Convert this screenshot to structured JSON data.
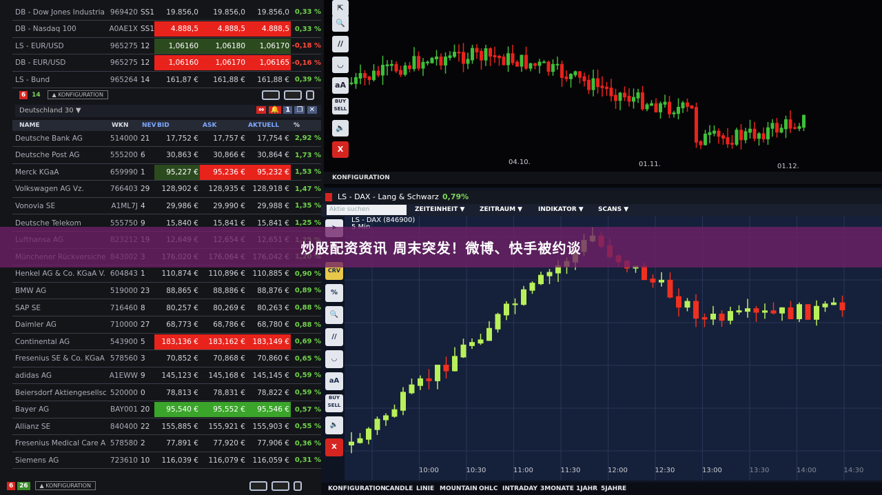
{
  "index_table": [
    {
      "name": "DB - Dow Jones Industria",
      "wkn": "969420",
      "nev": "SS1",
      "bid": "19.856,0",
      "ask": "19.856,0",
      "akt": "19.856,0",
      "pct": "0,33 %",
      "hl": ""
    },
    {
      "name": "DB - Nasdaq 100",
      "wkn": "A0AE1X",
      "nev": "SS1",
      "bid": "4.888,5",
      "ask": "4.888,5",
      "akt": "4.888,5",
      "pct": "0,33 %",
      "hl": "red"
    },
    {
      "name": "LS - EUR/USD",
      "wkn": "965275",
      "nev": "12",
      "bid": "1,06160",
      "ask": "1,06180",
      "akt": "1,06170",
      "pct": "-0,18 %",
      "hl": "dgreen"
    },
    {
      "name": "DB - EUR/USD",
      "wkn": "965275",
      "nev": "12",
      "bid": "1,06160",
      "ask": "1,06170",
      "akt": "1,06165",
      "pct": "-0,16 %",
      "hl": "red"
    },
    {
      "name": "LS - Bund",
      "wkn": "965264",
      "nev": "14",
      "bid": "161,87 €",
      "ask": "161,88 €",
      "akt": "161,88 €",
      "pct": "0,39 %",
      "hl": ""
    }
  ],
  "top_toolbar": {
    "count_red": "6",
    "count_green": "14",
    "config": "▲ KONFIGURATION"
  },
  "watchlist": {
    "title": "Deutschland 30",
    "columns": [
      "NAME",
      "WKN",
      "NEV",
      "BID",
      "ASK",
      "AKTUELL",
      "%"
    ],
    "rows": [
      {
        "name": "Deutsche Bank AG",
        "wkn": "514000",
        "nev": "21",
        "bid": "17,752 €",
        "ask": "17,757 €",
        "akt": "17,754 €",
        "pct": "2,92 %",
        "hl": ""
      },
      {
        "name": "Deutsche Post AG",
        "wkn": "555200",
        "nev": "6",
        "bid": "30,863 €",
        "ask": "30,866 €",
        "akt": "30,864 €",
        "pct": "1,73 %",
        "hl": ""
      },
      {
        "name": "Merck KGaA",
        "wkn": "659990",
        "nev": "1",
        "bid": "95,227 €",
        "ask": "95,236 €",
        "akt": "95,232 €",
        "pct": "1,53 %",
        "hl": "merck"
      },
      {
        "name": "Volkswagen AG Vz.",
        "wkn": "766403",
        "nev": "29",
        "bid": "128,902 €",
        "ask": "128,935 €",
        "akt": "128,918 €",
        "pct": "1,47 %",
        "hl": ""
      },
      {
        "name": "Vonovia SE",
        "wkn": "A1ML7J",
        "nev": "4",
        "bid": "29,986 €",
        "ask": "29,990 €",
        "akt": "29,988 €",
        "pct": "1,35 %",
        "hl": ""
      },
      {
        "name": "Deutsche Telekom",
        "wkn": "555750",
        "nev": "9",
        "bid": "15,840 €",
        "ask": "15,841 €",
        "akt": "15,841 €",
        "pct": "1,25 %",
        "hl": ""
      },
      {
        "name": "Lufthansa AG",
        "wkn": "823212",
        "nev": "19",
        "bid": "12,649 €",
        "ask": "12,654 €",
        "akt": "12,651 €",
        "pct": "1,25 %",
        "hl": ""
      },
      {
        "name": "Münchener Rückversiche",
        "wkn": "843002",
        "nev": "3",
        "bid": "176,020 €",
        "ask": "176,064 €",
        "akt": "176,042 €",
        "pct": "1,20 %",
        "hl": ""
      },
      {
        "name": "Henkel AG & Co. KGaA V.",
        "wkn": "604843",
        "nev": "1",
        "bid": "110,874 €",
        "ask": "110,896 €",
        "akt": "110,885 €",
        "pct": "0,90 %",
        "hl": ""
      },
      {
        "name": "BMW AG",
        "wkn": "519000",
        "nev": "23",
        "bid": "88,865 €",
        "ask": "88,886 €",
        "akt": "88,876 €",
        "pct": "0,89 %",
        "hl": ""
      },
      {
        "name": "SAP SE",
        "wkn": "716460",
        "nev": "8",
        "bid": "80,257 €",
        "ask": "80,269 €",
        "akt": "80,263 €",
        "pct": "0,88 %",
        "hl": ""
      },
      {
        "name": "Daimler AG",
        "wkn": "710000",
        "nev": "27",
        "bid": "68,773 €",
        "ask": "68,786 €",
        "akt": "68,780 €",
        "pct": "0,88 %",
        "hl": ""
      },
      {
        "name": "Continental AG",
        "wkn": "543900",
        "nev": "5",
        "bid": "183,136 €",
        "ask": "183,162 €",
        "akt": "183,149 €",
        "pct": "0,69 %",
        "hl": "red"
      },
      {
        "name": "Fresenius SE & Co. KGaA",
        "wkn": "578560",
        "nev": "3",
        "bid": "70,852 €",
        "ask": "70,868 €",
        "akt": "70,860 €",
        "pct": "0,65 %",
        "hl": ""
      },
      {
        "name": "adidas AG",
        "wkn": "A1EWW",
        "nev": "9",
        "bid": "145,123 €",
        "ask": "145,168 €",
        "akt": "145,145 €",
        "pct": "0,59 %",
        "hl": ""
      },
      {
        "name": "Beiersdorf Aktiengesellsc",
        "wkn": "520000",
        "nev": "0",
        "bid": "78,813 €",
        "ask": "78,831 €",
        "akt": "78,822 €",
        "pct": "0,59 %",
        "hl": ""
      },
      {
        "name": "Bayer AG",
        "wkn": "BAY001",
        "nev": "20",
        "bid": "95,540 €",
        "ask": "95,552 €",
        "akt": "95,546 €",
        "pct": "0,57 %",
        "hl": "green"
      },
      {
        "name": "Allianz SE",
        "wkn": "840400",
        "nev": "22",
        "bid": "155,885 €",
        "ask": "155,921 €",
        "akt": "155,903 €",
        "pct": "0,55 %",
        "hl": ""
      },
      {
        "name": "Fresenius Medical Care A",
        "wkn": "578580",
        "nev": "2",
        "bid": "77,891 €",
        "ask": "77,920 €",
        "akt": "77,906 €",
        "pct": "0,36 %",
        "hl": ""
      },
      {
        "name": "Siemens AG",
        "wkn": "723610",
        "nev": "10",
        "bid": "116,039 €",
        "ask": "116,079 €",
        "akt": "116,059 €",
        "pct": "0,31 %",
        "hl": ""
      }
    ]
  },
  "bottom_toolbar": {
    "count_red": "6",
    "count_green": "26",
    "config": "▲ KONFIGURATION"
  },
  "top_chart": {
    "x_labels": [
      "04.10.",
      "01.11.",
      "01.12."
    ],
    "config": "KONFIGURATION",
    "tools": [
      "aA",
      "BUY SELL",
      "X"
    ]
  },
  "dax_window": {
    "title": "LS - DAX - Lang & Schwarz",
    "change": "0,79%",
    "search_placeholder": "Aktie suchen",
    "menus": [
      "ZEITEINHEIT ▼",
      "ZEITRAUM ▼",
      "INDIKATOR ▼",
      "SCANS ▼"
    ],
    "instrument": "LS - DAX (846900)",
    "interval": "5 Min",
    "time_labels": [
      "10:00",
      "10:30",
      "11:00",
      "11:30",
      "12:00",
      "12:30",
      "13:00",
      "13:30",
      "14:00",
      "14:30"
    ],
    "tools": [
      "CRV",
      "%",
      "aA",
      "BUY SELL",
      "X"
    ],
    "bottom_menu": [
      "KONFIGURATION",
      "CANDLE",
      "LINIE",
      "MOUNTAIN",
      "OHLC",
      "INTRADAY",
      "3MONATE",
      "1JAHR",
      "5JAHRE"
    ]
  },
  "banner": {
    "headline": "炒股配资资讯 周末突发！微博、快手被约谈"
  },
  "colors": {
    "up": "#6fd34a",
    "down": "#e8231c",
    "banner": "#702068"
  }
}
